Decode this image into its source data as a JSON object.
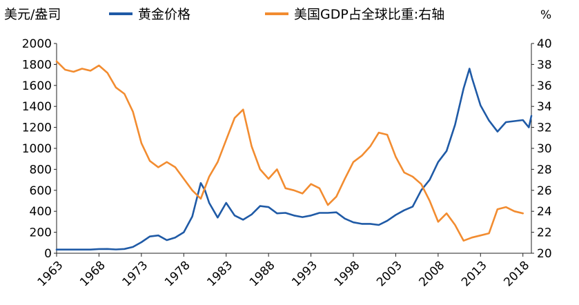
{
  "chart_data": {
    "type": "line",
    "left_axis_unit": "美元/盎司",
    "right_axis_unit": "%",
    "x_ticks": [
      "1963",
      "1968",
      "1973",
      "1978",
      "1983",
      "1988",
      "1993",
      "1998",
      "2003",
      "2008",
      "2013",
      "2018"
    ],
    "y_left_ticks": [
      "0",
      "200",
      "400",
      "600",
      "800",
      "1000",
      "1200",
      "1400",
      "1600",
      "1800",
      "2000"
    ],
    "y_right_ticks": [
      "20",
      "22",
      "24",
      "26",
      "28",
      "30",
      "32",
      "34",
      "36",
      "38",
      "40"
    ],
    "ylim_left": [
      0,
      2000
    ],
    "ylim_right": [
      20,
      40
    ],
    "xlim": [
      1963,
      2019
    ],
    "grid": false,
    "legend_position": "top",
    "series": [
      {
        "name": "黄金价格",
        "axis": "left",
        "color": "#1f5aa6",
        "points": [
          [
            1963,
            35
          ],
          [
            1967,
            35
          ],
          [
            1968,
            40
          ],
          [
            1969,
            41
          ],
          [
            1970,
            36
          ],
          [
            1971,
            41
          ],
          [
            1972,
            60
          ],
          [
            1973,
            105
          ],
          [
            1974,
            160
          ],
          [
            1975,
            170
          ],
          [
            1976,
            125
          ],
          [
            1977,
            150
          ],
          [
            1978,
            200
          ],
          [
            1979,
            350
          ],
          [
            1980,
            670
          ],
          [
            1980.5,
            600
          ],
          [
            1981,
            480
          ],
          [
            1982,
            340
          ],
          [
            1983,
            480
          ],
          [
            1984,
            360
          ],
          [
            1985,
            320
          ],
          [
            1986,
            370
          ],
          [
            1987,
            450
          ],
          [
            1988,
            440
          ],
          [
            1989,
            380
          ],
          [
            1990,
            385
          ],
          [
            1991,
            360
          ],
          [
            1992,
            345
          ],
          [
            1993,
            360
          ],
          [
            1994,
            385
          ],
          [
            1995,
            385
          ],
          [
            1996,
            390
          ],
          [
            1997,
            330
          ],
          [
            1998,
            295
          ],
          [
            1999,
            280
          ],
          [
            2000,
            280
          ],
          [
            2001,
            270
          ],
          [
            2002,
            310
          ],
          [
            2003,
            365
          ],
          [
            2004,
            410
          ],
          [
            2005,
            445
          ],
          [
            2006,
            600
          ],
          [
            2007,
            700
          ],
          [
            2008,
            870
          ],
          [
            2009,
            975
          ],
          [
            2010,
            1225
          ],
          [
            2011,
            1570
          ],
          [
            2011.7,
            1760
          ],
          [
            2012,
            1670
          ],
          [
            2013,
            1410
          ],
          [
            2014,
            1265
          ],
          [
            2015,
            1160
          ],
          [
            2016,
            1250
          ],
          [
            2017,
            1260
          ],
          [
            2018,
            1270
          ],
          [
            2018.7,
            1200
          ],
          [
            2019,
            1310
          ]
        ]
      },
      {
        "name": "美国GDP占全球比重:右轴",
        "axis": "right",
        "color": "#f28c30",
        "points": [
          [
            1963,
            38.3
          ],
          [
            1964,
            37.5
          ],
          [
            1965,
            37.3
          ],
          [
            1966,
            37.6
          ],
          [
            1967,
            37.4
          ],
          [
            1968,
            37.9
          ],
          [
            1969,
            37.2
          ],
          [
            1970,
            35.8
          ],
          [
            1971,
            35.2
          ],
          [
            1972,
            33.5
          ],
          [
            1973,
            30.5
          ],
          [
            1974,
            28.8
          ],
          [
            1975,
            28.2
          ],
          [
            1976,
            28.7
          ],
          [
            1977,
            28.2
          ],
          [
            1978,
            27.1
          ],
          [
            1979,
            26.0
          ],
          [
            1980,
            25.2
          ],
          [
            1981,
            27.3
          ],
          [
            1982,
            28.7
          ],
          [
            1983,
            30.8
          ],
          [
            1984,
            32.9
          ],
          [
            1985,
            33.7
          ],
          [
            1986,
            30.2
          ],
          [
            1987,
            28.0
          ],
          [
            1988,
            27.1
          ],
          [
            1989,
            28.0
          ],
          [
            1990,
            26.2
          ],
          [
            1991,
            26.0
          ],
          [
            1992,
            25.7
          ],
          [
            1993,
            26.6
          ],
          [
            1994,
            26.2
          ],
          [
            1995,
            24.6
          ],
          [
            1996,
            25.4
          ],
          [
            1997,
            27.1
          ],
          [
            1998,
            28.7
          ],
          [
            1999,
            29.3
          ],
          [
            2000,
            30.2
          ],
          [
            2001,
            31.5
          ],
          [
            2002,
            31.3
          ],
          [
            2003,
            29.2
          ],
          [
            2004,
            27.7
          ],
          [
            2005,
            27.3
          ],
          [
            2006,
            26.6
          ],
          [
            2007,
            25.0
          ],
          [
            2008,
            23.0
          ],
          [
            2009,
            23.8
          ],
          [
            2010,
            22.7
          ],
          [
            2011,
            21.2
          ],
          [
            2012,
            21.5
          ],
          [
            2013,
            21.7
          ],
          [
            2014,
            21.9
          ],
          [
            2015,
            24.2
          ],
          [
            2016,
            24.4
          ],
          [
            2017,
            24.0
          ],
          [
            2018,
            23.8
          ]
        ]
      }
    ]
  }
}
